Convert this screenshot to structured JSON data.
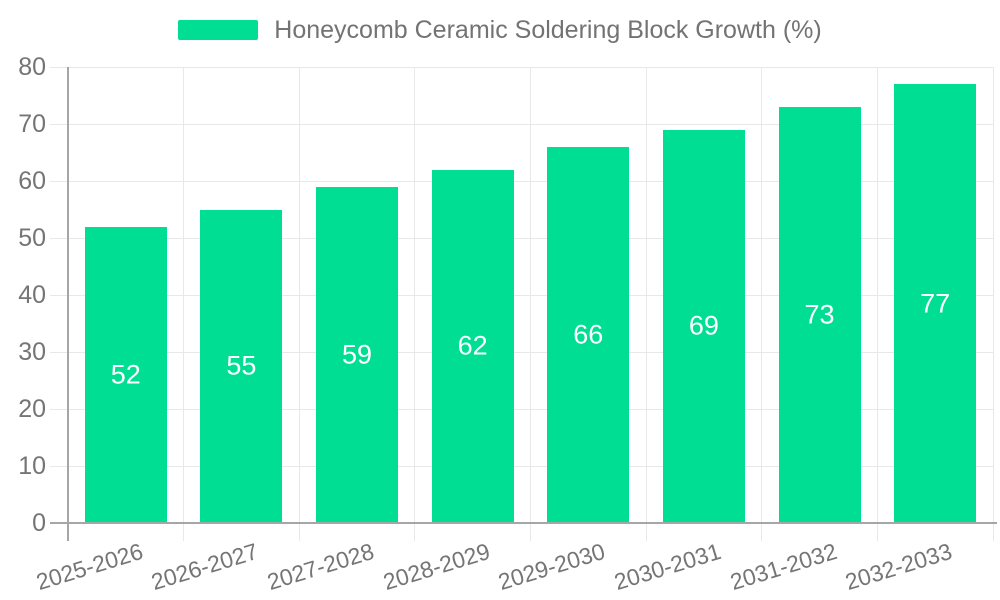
{
  "chart_data": {
    "type": "bar",
    "title": "Honeycomb Ceramic Soldering Block Growth (%)",
    "categories": [
      "2025-2026",
      "2026-2027",
      "2027-2028",
      "2028-2029",
      "2029-2030",
      "2030-2031",
      "2031-2032",
      "2032-2033"
    ],
    "values": [
      52,
      55,
      59,
      62,
      66,
      69,
      73,
      77
    ],
    "ylim": [
      0,
      80
    ],
    "yticks": [
      0,
      10,
      20,
      30,
      40,
      50,
      60,
      70,
      80
    ],
    "xlabel": "",
    "ylabel": "",
    "grid": "horizontal-and-vertical",
    "legend_position": "top-center",
    "x_label_rotation_deg": -17,
    "colors": {
      "bar": "#00DE94",
      "value_label": "#FFFFFF",
      "axis_line": "#A6A6A6",
      "grid_line": "#E8E8E8",
      "tick_mark": "#D2D2D2",
      "tick_text": "#757575",
      "legend_text": "#737373",
      "background": "#FFFFFF"
    }
  }
}
